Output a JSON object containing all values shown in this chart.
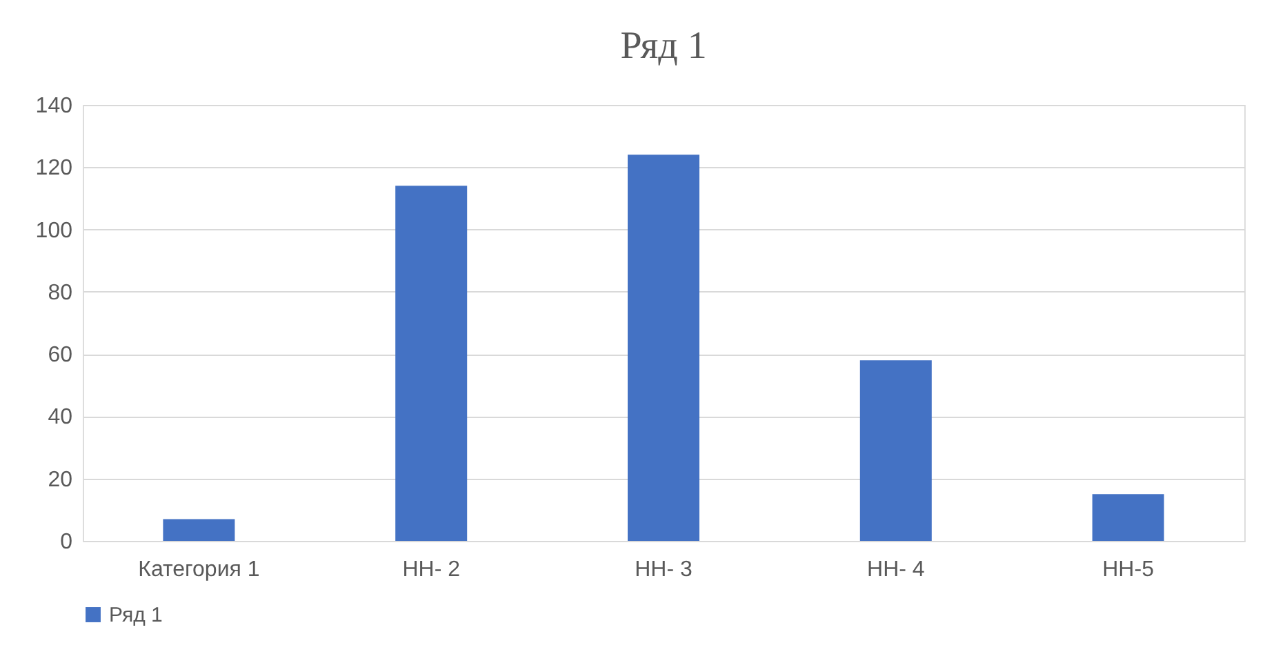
{
  "chart_data": {
    "type": "bar",
    "title": "Ряд 1",
    "categories": [
      "Категория 1",
      "НН- 2",
      "НН- 3",
      "НН- 4",
      "НН-5"
    ],
    "series": [
      {
        "name": "Ряд 1",
        "color": "#4472c4",
        "values": [
          7,
          114,
          124,
          58,
          15
        ]
      }
    ],
    "ylim": [
      0,
      140
    ],
    "yticks": [
      0,
      20,
      40,
      60,
      80,
      100,
      120,
      140
    ],
    "grid": "y",
    "legend": "bottom"
  }
}
